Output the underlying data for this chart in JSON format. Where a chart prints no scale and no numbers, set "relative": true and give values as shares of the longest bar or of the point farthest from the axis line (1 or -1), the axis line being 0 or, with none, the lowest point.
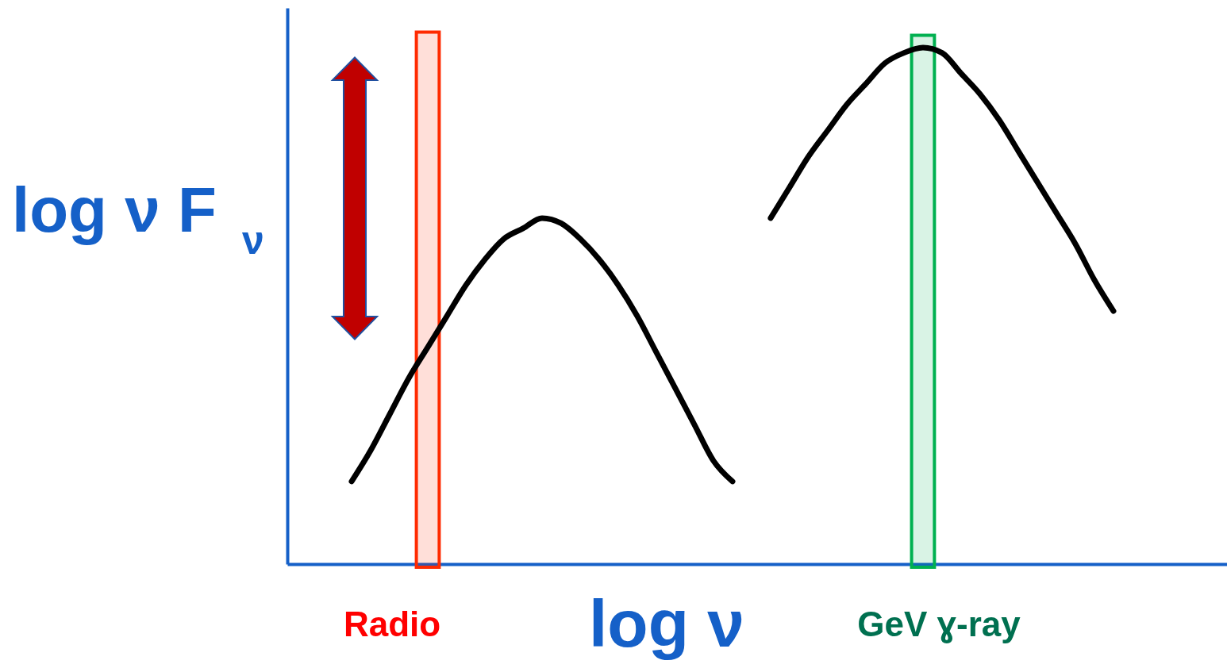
{
  "chart_data": {
    "type": "line",
    "relative": true,
    "xlabel": "log ν",
    "ylabel": "log ν F$_{ν}$",
    "marker": "none",
    "line_style": "solid",
    "annotations": [
      "Radio",
      "GeV ɣ-ray"
    ],
    "categories": [
      null,
      null,
      null,
      null,
      null,
      null,
      null,
      null,
      null,
      null,
      null,
      null,
      null,
      null,
      null,
      null,
      null,
      null,
      null,
      null,
      null,
      null,
      null,
      null,
      null,
      null,
      null,
      null,
      null,
      null,
      null,
      null,
      null,
      null,
      null,
      null,
      null,
      null,
      null,
      null,
      null
    ],
    "series": [
      {
        "color": "#000000",
        "values": [
          0.16,
          0.22,
          0.29,
          0.36,
          0.42,
          0.48,
          0.54,
          0.59,
          0.63,
          0.65,
          0.67,
          0.66,
          0.63,
          0.59,
          0.54,
          0.48,
          0.41,
          0.34,
          0.27,
          0.2,
          0.16,
          null,
          null,
          null,
          null,
          null,
          null,
          null,
          null,
          null,
          null,
          null,
          null,
          null,
          null,
          null,
          null,
          null,
          null,
          null,
          null
        ]
      },
      {
        "color": "#000000",
        "values": [
          null,
          null,
          null,
          null,
          null,
          null,
          null,
          null,
          null,
          null,
          null,
          null,
          null,
          null,
          null,
          null,
          null,
          null,
          null,
          null,
          null,
          null,
          0.67,
          0.73,
          0.79,
          0.84,
          0.89,
          0.93,
          0.97,
          0.99,
          1.0,
          0.99,
          0.95,
          0.91,
          0.86,
          0.8,
          0.74,
          0.68,
          0.62,
          0.55,
          0.49
        ]
      }
    ]
  }
}
